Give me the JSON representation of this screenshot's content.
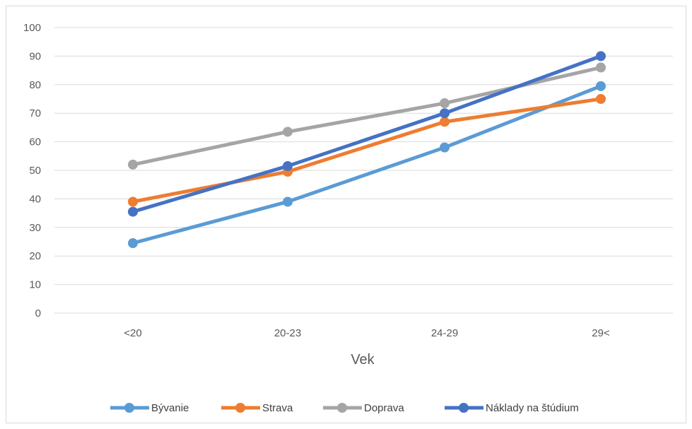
{
  "chart_data": {
    "type": "line",
    "title": "",
    "xlabel": "Vek",
    "ylabel": "",
    "categories": [
      "<20",
      "20-23",
      "24-29",
      "29<"
    ],
    "ylim": [
      0,
      100
    ],
    "yticks": [
      0,
      10,
      20,
      30,
      40,
      50,
      60,
      70,
      80,
      90,
      100
    ],
    "grid": true,
    "legend_position": "bottom",
    "series": [
      {
        "name": "Bývanie",
        "color": "#5b9bd5",
        "values": [
          24.5,
          39,
          58,
          79.5
        ]
      },
      {
        "name": "Strava",
        "color": "#ed7d31",
        "values": [
          39,
          49.5,
          67,
          75
        ]
      },
      {
        "name": "Doprava",
        "color": "#a5a5a5",
        "values": [
          52,
          63.5,
          73.5,
          86
        ]
      },
      {
        "name": "Náklady na štúdium",
        "color": "#4472c4",
        "values": [
          35.5,
          51.5,
          70,
          90
        ]
      }
    ]
  }
}
